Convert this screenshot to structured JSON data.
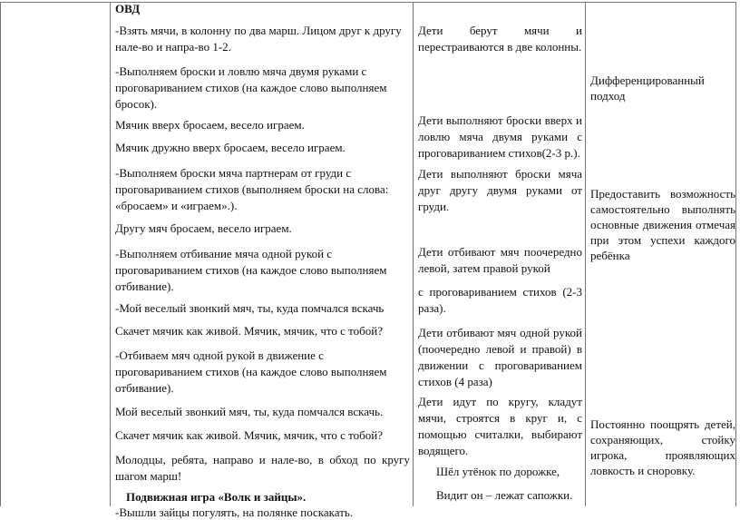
{
  "column2": {
    "heading": "ОВД",
    "paragraphs": [
      "-Взять мячи, в колонну по два марш. Лицом друг к другу нале-во и напра-во 1-2.",
      "-Выполняем броски и ловлю мяча двумя руками с проговариванием стихов (на каждое слово выполняем бросок).",
      "Мячик вверх бросаем, весело играем.",
      "Мячик дружно вверх бросаем, весело играем.",
      "-Выполняем броски мяча партнерам от груди с проговариванием стихов (выполняем броски на слова: «бросаем» и «играем».).",
      "Другу мяч бросаем, весело играем.",
      "-Выполняем отбивание мяча одной рукой с проговариванием стихов (на каждое слово выполняем отбивание).",
      "-Мой веселый звонкий мяч, ты, куда помчался вскачь",
      "Скачет мячик как живой. Мячик, мячик, что с тобой?",
      "-Отбиваем мяч одной рукой в движение с проговариванием стихов (на каждое слово выполняем отбивание).",
      "Мой веселый звонкий мяч, ты, куда помчался вскачь.",
      "Скачет мячик как живой. Мячик, мячик, что с тобой?",
      "Молодцы, ребята, направо и нале-во, в обход по кругу шагом марш!"
    ],
    "game_title": "Подвижная игра «Волк и зайцы».",
    "last_line": "-Вышли зайцы погулять, на полянке поскакать."
  },
  "column3": {
    "paragraphs": [
      "Дети берут мячи и перестраиваются в две колонны.",
      "Дети выполняют броски вверх и ловлю мяча двумя руками с проговариванием стихов(2-3 р.).",
      "Дети выполняют броски мяча друг другу двумя руками от груди.",
      "Дети отбивают мяч поочередно левой, затем правой рукой",
      "с проговариванием стихов (2-3 раза).",
      "Дети отбивают мяч одной рукой (поочередно левой и правой) в движении с проговариванием стихов (4 раза)",
      "Дети идут по кругу, кладут мячи, строятся в круг и, с помощью считалки, выбирают водящего.",
      "Шёл утёнок по дорожке,",
      "Видит он – лежат сапожки."
    ]
  },
  "column4": {
    "paragraphs": [
      "Дифференцированный подход",
      "Предоставить возможность самостоятельно выполнять основные движения отмечая при этом успехи каждого ребёнка",
      "Постоянно поощрять детей, сохраняющих, стойку игрока, проявляющих ловкость и сноровку."
    ]
  }
}
